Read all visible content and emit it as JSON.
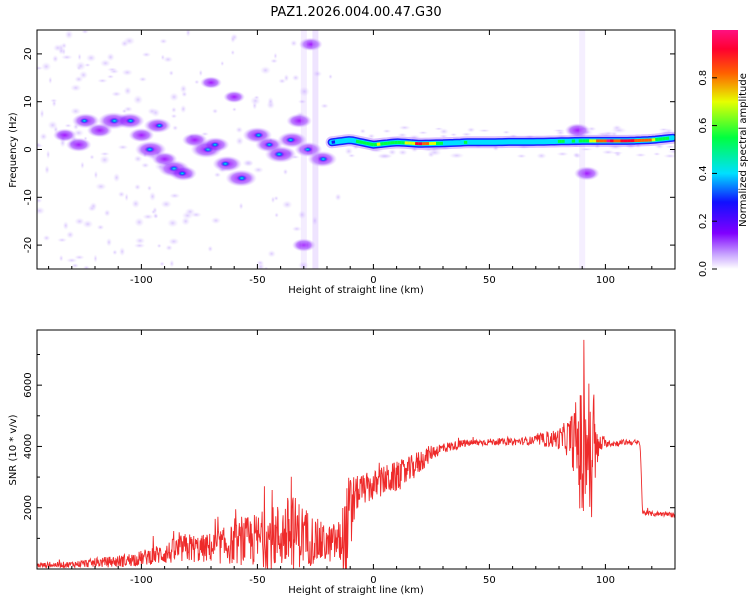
{
  "figure": {
    "title": "PAZ1.2026.004.00.47.G30"
  },
  "colorbar": {
    "label": "Normalized spectral amplitude",
    "ticks": [
      "0.0",
      "0.2",
      "0.4",
      "0.6",
      "0.8"
    ],
    "tick_values": [
      0.0,
      0.2,
      0.4,
      0.6,
      0.8
    ],
    "range": [
      0,
      1
    ]
  },
  "chart_data": [
    {
      "type": "heatmap",
      "title": "",
      "xlabel": "Height of straight line (km)",
      "ylabel": "Frequency (Hz)",
      "xlim": [
        -145,
        130
      ],
      "ylim": [
        -25,
        25
      ],
      "xticks": [
        -100,
        -50,
        0,
        50,
        100
      ],
      "xtick_labels": [
        "-100",
        "-50",
        "0",
        "50",
        "100"
      ],
      "yticks": [
        -20,
        -10,
        0,
        10,
        20
      ],
      "ytick_labels": [
        "-20",
        "-10",
        "0",
        "10",
        "20"
      ],
      "colormap": "rainbow (purple-blue-cyan-green-yellow-red-magenta)",
      "ridge": {
        "description": "continuous spectral ridge near 1-2 Hz from about -18 km to the right edge",
        "x": [
          -18,
          -10,
          0,
          10,
          20,
          30,
          40,
          50,
          60,
          70,
          80,
          90,
          100,
          110,
          120,
          130
        ],
        "y": [
          1.5,
          2.0,
          1.0,
          1.5,
          1.2,
          1.3,
          1.5,
          1.5,
          1.6,
          1.6,
          1.7,
          1.8,
          1.8,
          1.8,
          2.0,
          2.5
        ],
        "amplitude": [
          0.45,
          0.5,
          0.7,
          0.6,
          0.95,
          0.55,
          0.5,
          0.5,
          0.5,
          0.5,
          0.5,
          0.6,
          0.95,
          0.95,
          0.75,
          0.45
        ]
      },
      "blobs": [
        {
          "x": -133,
          "y": 3,
          "a": 0.25
        },
        {
          "x": -127,
          "y": 1,
          "a": 0.3
        },
        {
          "x": -124,
          "y": 6,
          "a": 0.35
        },
        {
          "x": -118,
          "y": 4,
          "a": 0.3
        },
        {
          "x": -112,
          "y": 6,
          "a": 0.45
        },
        {
          "x": -105,
          "y": 6,
          "a": 0.4
        },
        {
          "x": -100,
          "y": 3,
          "a": 0.3
        },
        {
          "x": -96,
          "y": 0,
          "a": 0.45
        },
        {
          "x": -93,
          "y": 5,
          "a": 0.35
        },
        {
          "x": -90,
          "y": -2,
          "a": 0.3
        },
        {
          "x": -86,
          "y": -4,
          "a": 0.45
        },
        {
          "x": -82,
          "y": -5,
          "a": 0.35
        },
        {
          "x": -77,
          "y": 2,
          "a": 0.3
        },
        {
          "x": -72,
          "y": 0,
          "a": 0.45
        },
        {
          "x": -68,
          "y": 1,
          "a": 0.35
        },
        {
          "x": -63,
          "y": -3,
          "a": 0.4
        },
        {
          "x": -57,
          "y": -6,
          "a": 0.45
        },
        {
          "x": -50,
          "y": 3,
          "a": 0.4
        },
        {
          "x": -45,
          "y": 1,
          "a": 0.35
        },
        {
          "x": -40,
          "y": -1,
          "a": 0.45
        },
        {
          "x": -35,
          "y": 2,
          "a": 0.4
        },
        {
          "x": -32,
          "y": 6,
          "a": 0.3
        },
        {
          "x": -28,
          "y": 0,
          "a": 0.35
        },
        {
          "x": -22,
          "y": -2,
          "a": 0.4
        },
        {
          "x": -27,
          "y": 22,
          "a": 0.25
        },
        {
          "x": -30,
          "y": -20,
          "a": 0.25
        },
        {
          "x": -70,
          "y": 14,
          "a": 0.2
        },
        {
          "x": -60,
          "y": 11,
          "a": 0.2
        },
        {
          "x": 88,
          "y": 4,
          "a": 0.3
        },
        {
          "x": 92,
          "y": -5,
          "a": 0.3
        }
      ]
    },
    {
      "type": "line",
      "title": "",
      "xlabel": "Height of straight line (km)",
      "ylabel": "SNR (10 * v/v)",
      "xlim": [
        -145,
        130
      ],
      "ylim": [
        0,
        7800
      ],
      "xticks": [
        -100,
        -50,
        0,
        50,
        100
      ],
      "xtick_labels": [
        "-100",
        "-50",
        "0",
        "50",
        "100"
      ],
      "yticks": [
        2000,
        4000,
        6000
      ],
      "ytick_labels": [
        "2000",
        "4000",
        "6000"
      ],
      "color": "#ee2a2a",
      "series": [
        {
          "x": [
            -145,
            -130,
            -120,
            -110,
            -100,
            -95,
            -90,
            -85,
            -80,
            -75,
            -70,
            -65,
            -60,
            -55,
            -50,
            -45,
            -40,
            -35,
            -30,
            -25,
            -20,
            -15,
            -12,
            -10,
            -8,
            -5,
            0,
            5,
            10,
            15,
            20,
            25,
            30,
            40,
            50,
            60,
            70,
            80,
            85,
            88,
            90,
            92,
            94,
            95,
            96,
            98,
            100,
            105,
            110,
            115,
            116,
            120,
            125,
            130
          ],
          "y": [
            120,
            150,
            200,
            250,
            350,
            450,
            500,
            600,
            700,
            650,
            700,
            750,
            800,
            900,
            950,
            1000,
            1100,
            1200,
            1100,
            900,
            800,
            900,
            1000,
            1400,
            2400,
            2600,
            2700,
            2900,
            3000,
            3200,
            3500,
            3800,
            3950,
            4100,
            4150,
            4150,
            4200,
            4250,
            4300,
            4100,
            3500,
            4400,
            3000,
            4500,
            3700,
            4100,
            4100,
            4100,
            4150,
            4100,
            1850,
            1800,
            1800,
            1750
          ],
          "noise": [
            80,
            100,
            150,
            200,
            250,
            300,
            350,
            450,
            500,
            450,
            500,
            600,
            650,
            800,
            900,
            1000,
            1100,
            1300,
            1000,
            800,
            600,
            700,
            1500,
            2000,
            600,
            500,
            500,
            500,
            500,
            450,
            400,
            250,
            180,
            120,
            110,
            110,
            150,
            350,
            700,
            1600,
            2500,
            2800,
            2200,
            1800,
            800,
            300,
            120,
            100,
            100,
            100,
            80,
            80,
            80,
            80
          ]
        }
      ]
    }
  ]
}
